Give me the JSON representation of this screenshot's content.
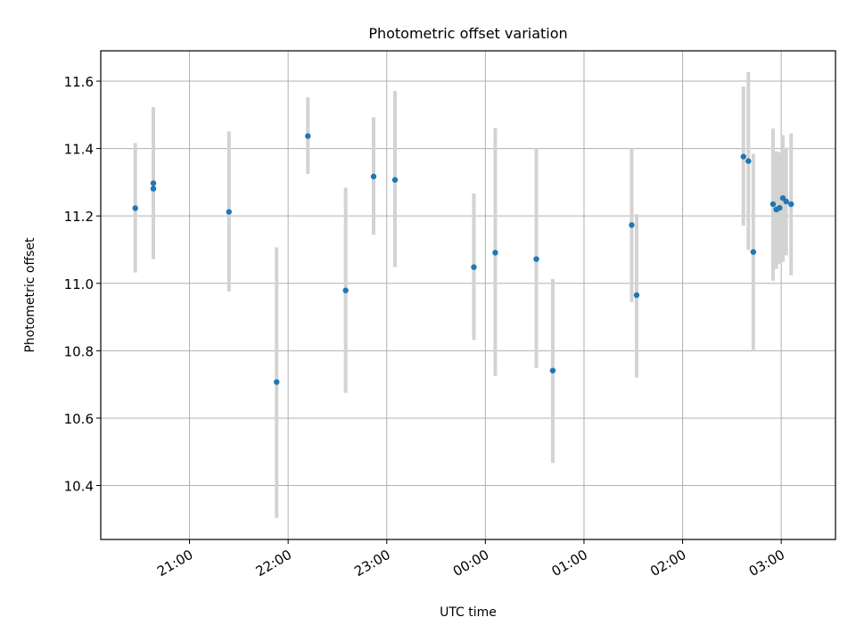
{
  "chart_data": {
    "type": "scatter",
    "title": "Photometric offset variation",
    "xlabel": "UTC time",
    "ylabel": "Photometric offset",
    "grid": true,
    "xlim": [
      "20:06",
      "27:33"
    ],
    "ylim": [
      10.24,
      11.69
    ],
    "x_ticks": [
      {
        "label": "21:00",
        "value": "21:00"
      },
      {
        "label": "22:00",
        "value": "22:00"
      },
      {
        "label": "23:00",
        "value": "23:00"
      },
      {
        "label": "00:00",
        "value": "24:00"
      },
      {
        "label": "01:00",
        "value": "25:00"
      },
      {
        "label": "02:00",
        "value": "26:00"
      },
      {
        "label": "03:00",
        "value": "27:00"
      }
    ],
    "y_ticks": [
      10.4,
      10.6,
      10.8,
      11.0,
      11.2,
      11.4,
      11.6
    ],
    "y_tick_labels": [
      "10.4",
      "10.6",
      "10.8",
      "11.0",
      "11.2",
      "11.4",
      "11.6"
    ],
    "marker_color": "#1f77b4",
    "errorbar_color": "#d3d3d3",
    "points": [
      {
        "t": "20:27",
        "y": 11.223,
        "lo": 11.032,
        "hi": 11.416
      },
      {
        "t": "20:38",
        "y": 11.297,
        "lo": 11.072,
        "hi": 11.523
      },
      {
        "t": "20:38",
        "y": 11.281,
        "lo": 11.072,
        "hi": 11.496
      },
      {
        "t": "21:24",
        "y": 11.212,
        "lo": 10.976,
        "hi": 11.451
      },
      {
        "t": "21:53",
        "y": 10.707,
        "lo": 10.304,
        "hi": 11.107
      },
      {
        "t": "22:12",
        "y": 11.437,
        "lo": 11.325,
        "hi": 11.552
      },
      {
        "t": "22:35",
        "y": 10.979,
        "lo": 10.675,
        "hi": 11.284
      },
      {
        "t": "22:52",
        "y": 11.317,
        "lo": 11.144,
        "hi": 11.493
      },
      {
        "t": "23:05",
        "y": 11.307,
        "lo": 11.048,
        "hi": 11.571
      },
      {
        "t": "23:53",
        "y": 11.048,
        "lo": 10.832,
        "hi": 11.267
      },
      {
        "t": "24:06",
        "y": 11.091,
        "lo": 10.725,
        "hi": 11.461
      },
      {
        "t": "24:31",
        "y": 11.072,
        "lo": 10.749,
        "hi": 11.4
      },
      {
        "t": "24:41",
        "y": 10.741,
        "lo": 10.467,
        "hi": 11.013
      },
      {
        "t": "25:29",
        "y": 11.173,
        "lo": 10.944,
        "hi": 11.4
      },
      {
        "t": "25:32",
        "y": 10.965,
        "lo": 10.72,
        "hi": 11.205
      },
      {
        "t": "26:37",
        "y": 11.376,
        "lo": 11.171,
        "hi": 11.584
      },
      {
        "t": "26:40",
        "y": 11.363,
        "lo": 11.099,
        "hi": 11.627
      },
      {
        "t": "26:43",
        "y": 11.093,
        "lo": 10.803,
        "hi": 11.384
      },
      {
        "t": "26:55",
        "y": 11.235,
        "lo": 11.008,
        "hi": 11.459
      },
      {
        "t": "26:57",
        "y": 11.219,
        "lo": 11.043,
        "hi": 11.392
      },
      {
        "t": "26:59",
        "y": 11.224,
        "lo": 11.057,
        "hi": 11.389
      },
      {
        "t": "27:01",
        "y": 11.253,
        "lo": 11.064,
        "hi": 11.44
      },
      {
        "t": "27:03",
        "y": 11.243,
        "lo": 11.083,
        "hi": 11.403
      },
      {
        "t": "27:06",
        "y": 11.235,
        "lo": 11.024,
        "hi": 11.445
      }
    ]
  }
}
